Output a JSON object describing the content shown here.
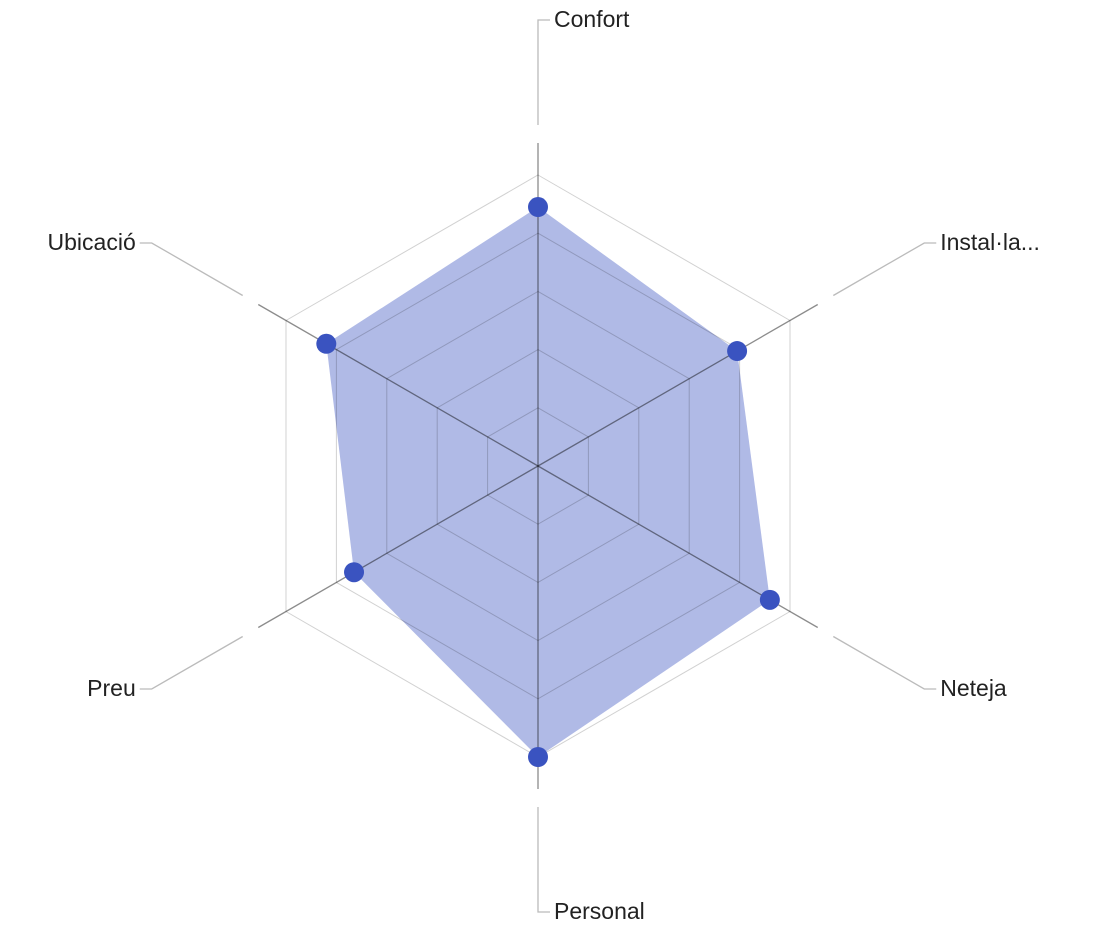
{
  "chart_data": {
    "type": "radar",
    "categories": [
      "Confort",
      "Instal·la...",
      "Neteja",
      "Personal",
      "Preu",
      "Ubicació"
    ],
    "values": [
      8.9,
      7.9,
      9.2,
      10.0,
      7.3,
      8.4
    ],
    "color": "#3a53c0",
    "ylim": [
      0,
      10
    ],
    "yticks": [
      0,
      2,
      4,
      6,
      8,
      10
    ],
    "grid": true
  }
}
